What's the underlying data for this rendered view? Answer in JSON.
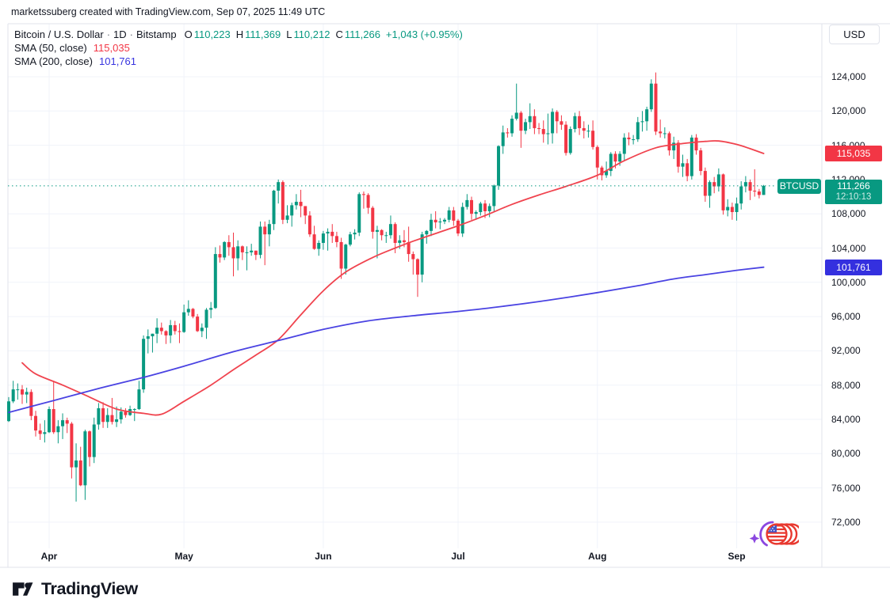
{
  "attribution": "marketssuberg created with TradingView.com, Sep 07, 2025 11:49 UTC",
  "legend": {
    "title": "Bitcoin / U.S. Dollar",
    "separator": "·",
    "interval": "1D",
    "exchange": "Bitstamp",
    "o_label": "O",
    "o_value": "110,223",
    "h_label": "H",
    "h_value": "111,369",
    "l_label": "L",
    "l_value": "110,212",
    "c_label": "C",
    "c_value": "111,266",
    "change": "+1,043 (+0.95%)",
    "sma50_label": "SMA (50, close)",
    "sma50_value": "115,035",
    "sma200_label": "SMA (200, close)",
    "sma200_value": "101,761"
  },
  "price_axis": {
    "currency_button": "USD",
    "sma50_badge": "115,035",
    "last_badge": "111,266",
    "countdown": "12:10:13",
    "sma200_badge": "101,761"
  },
  "symbol_badge": "BTCUSD",
  "footer": {
    "brand": "TradingView"
  },
  "colors": {
    "up": "#089981",
    "down": "#F23645",
    "sma50_line": "#F0434E",
    "sma200_line": "#4A43E2",
    "badge_red": "#F23645",
    "badge_teal": "#089981",
    "badge_blue": "#3430DF",
    "grid": "#F0F3FA",
    "border": "#E0E3EB",
    "text": "#131722",
    "background": "#FFFFFF"
  },
  "chart_data": {
    "type": "candlestick",
    "title": "Bitcoin / U.S. Dollar · 1D · Bitstamp",
    "symbol": "BTCUSD",
    "interval": "1D",
    "unit": "USD thousands",
    "start_date": "2025-03-23",
    "end_date": "2025-09-07",
    "ylim": [
      69000,
      130100
    ],
    "grid": true,
    "price_ticks": [
      124000,
      120000,
      116000,
      112000,
      108000,
      104000,
      100000,
      96000,
      92000,
      88000,
      84000,
      80000,
      76000,
      72000
    ],
    "month_labels": [
      "Apr",
      "May",
      "Jun",
      "Jul",
      "Aug",
      "Sep"
    ],
    "month_tick_days": [
      9,
      39,
      70,
      100,
      131,
      162
    ],
    "last_price": 111.266,
    "last_ohlc": {
      "open": 110.223,
      "high": 111.369,
      "low": 110.212,
      "close": 111.266
    },
    "candles": [
      [
        83.8,
        86.6,
        83.7,
        86.1
      ],
      [
        86.1,
        88.5,
        85.9,
        87.5
      ],
      [
        87.5,
        88.2,
        86.3,
        87.5
      ],
      [
        87.5,
        88.0,
        85.8,
        86.9
      ],
      [
        86.9,
        87.7,
        85.9,
        87.2
      ],
      [
        87.2,
        87.5,
        83.9,
        84.4
      ],
      [
        84.4,
        85.0,
        82.0,
        82.7
      ],
      [
        82.7,
        83.5,
        81.6,
        82.3
      ],
      [
        82.3,
        83.9,
        81.3,
        82.5
      ],
      [
        82.5,
        85.5,
        82.4,
        85.2
      ],
      [
        85.2,
        88.5,
        82.3,
        82.5
      ],
      [
        82.5,
        83.9,
        81.2,
        83.2
      ],
      [
        83.2,
        84.7,
        81.7,
        83.9
      ],
      [
        83.9,
        84.2,
        82.4,
        83.5
      ],
      [
        83.5,
        83.7,
        77.1,
        78.4
      ],
      [
        78.4,
        81.2,
        74.4,
        79.2
      ],
      [
        79.2,
        80.8,
        76.2,
        76.3
      ],
      [
        76.3,
        82.8,
        74.6,
        82.6
      ],
      [
        82.6,
        82.7,
        78.5,
        79.6
      ],
      [
        79.6,
        84.2,
        78.9,
        83.4
      ],
      [
        83.4,
        85.9,
        82.8,
        85.3
      ],
      [
        85.3,
        86.0,
        83.0,
        83.7
      ],
      [
        83.7,
        85.3,
        83.0,
        84.5
      ],
      [
        84.5,
        86.5,
        83.4,
        83.7
      ],
      [
        83.7,
        85.5,
        83.1,
        84.0
      ],
      [
        84.0,
        85.4,
        83.5,
        84.9
      ],
      [
        84.9,
        85.3,
        84.2,
        84.5
      ],
      [
        84.5,
        85.6,
        84.4,
        85.2
      ],
      [
        85.2,
        85.3,
        83.8,
        85.2
      ],
      [
        85.2,
        88.5,
        85.1,
        87.5
      ],
      [
        87.5,
        93.8,
        87.1,
        93.4
      ],
      [
        93.4,
        94.5,
        91.7,
        93.7
      ],
      [
        93.7,
        94.0,
        91.8,
        94.0
      ],
      [
        94.0,
        95.8,
        92.9,
        94.7
      ],
      [
        94.7,
        95.3,
        93.9,
        94.3
      ],
      [
        94.3,
        94.4,
        92.8,
        93.8
      ],
      [
        93.8,
        95.6,
        92.9,
        95.0
      ],
      [
        95.0,
        95.5,
        93.9,
        94.3
      ],
      [
        94.3,
        95.2,
        92.9,
        94.2
      ],
      [
        94.2,
        97.4,
        94.1,
        96.5
      ],
      [
        96.5,
        97.9,
        96.1,
        96.9
      ],
      [
        96.9,
        97.0,
        95.8,
        96.0
      ],
      [
        96.0,
        96.3,
        94.2,
        94.3
      ],
      [
        94.3,
        95.2,
        93.6,
        94.7
      ],
      [
        94.7,
        97.0,
        93.4,
        96.8
      ],
      [
        96.8,
        97.7,
        95.8,
        97.0
      ],
      [
        97.0,
        104.1,
        96.9,
        103.3
      ],
      [
        103.3,
        104.3,
        102.3,
        102.9
      ],
      [
        102.9,
        104.8,
        102.6,
        104.7
      ],
      [
        104.7,
        105.5,
        103.1,
        104.1
      ],
      [
        104.1,
        105.8,
        100.7,
        102.8
      ],
      [
        102.8,
        104.9,
        101.4,
        104.2
      ],
      [
        104.2,
        104.3,
        102.6,
        103.5
      ],
      [
        103.5,
        104.2,
        101.4,
        103.5
      ],
      [
        103.5,
        104.5,
        103.1,
        103.7
      ],
      [
        103.7,
        103.7,
        102.6,
        103.2
      ],
      [
        103.2,
        107.1,
        102.8,
        106.5
      ],
      [
        106.5,
        107.1,
        102.0,
        105.6
      ],
      [
        105.6,
        107.3,
        104.2,
        106.8
      ],
      [
        106.8,
        110.8,
        106.1,
        110.7
      ],
      [
        110.7,
        112.0,
        109.2,
        111.7
      ],
      [
        111.7,
        111.9,
        106.8,
        107.3
      ],
      [
        107.3,
        109.0,
        106.9,
        107.8
      ],
      [
        107.8,
        109.3,
        106.5,
        109.0
      ],
      [
        109.0,
        110.3,
        108.5,
        109.4
      ],
      [
        109.4,
        110.8,
        107.6,
        108.9
      ],
      [
        108.9,
        108.9,
        106.8,
        107.8
      ],
      [
        107.8,
        108.3,
        105.3,
        105.6
      ],
      [
        105.6,
        106.6,
        103.8,
        103.9
      ],
      [
        103.9,
        104.9,
        103.1,
        104.6
      ],
      [
        104.6,
        106.0,
        103.8,
        105.7
      ],
      [
        105.7,
        106.3,
        103.7,
        105.9
      ],
      [
        105.9,
        106.8,
        104.6,
        105.4
      ],
      [
        105.4,
        105.9,
        104.1,
        104.7
      ],
      [
        104.7,
        105.2,
        100.4,
        101.6
      ],
      [
        101.6,
        104.5,
        100.9,
        104.4
      ],
      [
        104.4,
        105.9,
        104.2,
        105.6
      ],
      [
        105.6,
        106.2,
        105.0,
        105.8
      ],
      [
        105.8,
        110.5,
        105.4,
        110.3
      ],
      [
        110.3,
        110.6,
        108.6,
        110.2
      ],
      [
        110.2,
        110.4,
        108.0,
        108.7
      ],
      [
        108.7,
        108.9,
        105.1,
        105.9
      ],
      [
        105.9,
        106.6,
        102.8,
        106.1
      ],
      [
        106.1,
        106.2,
        104.9,
        105.5
      ],
      [
        105.5,
        105.9,
        104.6,
        105.5
      ],
      [
        105.5,
        107.8,
        105.1,
        106.8
      ],
      [
        106.8,
        107.0,
        103.4,
        104.6
      ],
      [
        104.6,
        105.5,
        103.9,
        104.9
      ],
      [
        104.9,
        106.1,
        104.1,
        104.7
      ],
      [
        104.7,
        106.5,
        102.4,
        103.3
      ],
      [
        103.3,
        103.6,
        100.9,
        102.7
      ],
      [
        102.7,
        102.8,
        98.3,
        100.9
      ],
      [
        100.9,
        105.9,
        100.0,
        105.6
      ],
      [
        105.6,
        106.1,
        104.5,
        106.0
      ],
      [
        106.0,
        108.0,
        105.4,
        107.3
      ],
      [
        107.3,
        108.3,
        106.3,
        107.0
      ],
      [
        107.0,
        107.5,
        106.2,
        107.1
      ],
      [
        107.1,
        107.5,
        106.8,
        107.3
      ],
      [
        107.3,
        108.8,
        107.0,
        108.4
      ],
      [
        108.4,
        108.8,
        106.6,
        107.2
      ],
      [
        107.2,
        107.4,
        105.4,
        105.7
      ],
      [
        105.7,
        109.3,
        105.3,
        108.8
      ],
      [
        108.8,
        110.3,
        108.5,
        109.6
      ],
      [
        109.6,
        110.0,
        107.3,
        108.0
      ],
      [
        108.0,
        108.4,
        107.3,
        108.2
      ],
      [
        108.2,
        109.4,
        107.8,
        109.2
      ],
      [
        109.2,
        109.6,
        107.5,
        108.3
      ],
      [
        108.3,
        109.2,
        107.6,
        108.9
      ],
      [
        108.9,
        111.4,
        108.3,
        111.3
      ],
      [
        111.3,
        116.0,
        110.8,
        115.9
      ],
      [
        115.9,
        118.3,
        115.0,
        117.5
      ],
      [
        117.5,
        118.0,
        116.9,
        117.4
      ],
      [
        117.4,
        119.5,
        117.0,
        119.1
      ],
      [
        119.1,
        123.2,
        118.9,
        119.8
      ],
      [
        119.8,
        120.0,
        115.7,
        117.7
      ],
      [
        117.7,
        119.1,
        117.3,
        118.7
      ],
      [
        118.7,
        120.9,
        117.9,
        119.4
      ],
      [
        119.4,
        120.2,
        117.3,
        118.0
      ],
      [
        118.0,
        118.6,
        117.3,
        117.9
      ],
      [
        117.9,
        118.9,
        116.3,
        117.3
      ],
      [
        117.3,
        119.7,
        116.1,
        117.4
      ],
      [
        117.4,
        120.3,
        116.2,
        119.9
      ],
      [
        119.9,
        120.1,
        117.4,
        118.8
      ],
      [
        118.8,
        119.5,
        117.8,
        118.4
      ],
      [
        118.4,
        118.8,
        114.8,
        115.1
      ],
      [
        115.1,
        118.2,
        114.9,
        117.9
      ],
      [
        117.9,
        119.8,
        117.5,
        119.4
      ],
      [
        119.4,
        120.0,
        117.2,
        118.0
      ],
      [
        118.0,
        118.8,
        116.8,
        117.7
      ],
      [
        117.7,
        118.4,
        116.9,
        117.7
      ],
      [
        117.7,
        118.9,
        115.5,
        115.8
      ],
      [
        115.8,
        116.0,
        112.0,
        113.4
      ],
      [
        113.4,
        113.6,
        111.9,
        112.5
      ],
      [
        112.5,
        114.1,
        112.2,
        113.0
      ],
      [
        113.0,
        115.2,
        112.4,
        115.0
      ],
      [
        115.0,
        115.3,
        113.3,
        114.1
      ],
      [
        114.1,
        115.3,
        113.6,
        115.0
      ],
      [
        115.0,
        117.4,
        114.2,
        116.9
      ],
      [
        116.9,
        117.5,
        116.0,
        116.7
      ],
      [
        116.7,
        117.2,
        116.1,
        116.7
      ],
      [
        116.7,
        119.3,
        116.4,
        118.7
      ],
      [
        118.7,
        120.0,
        117.6,
        118.8
      ],
      [
        118.8,
        120.5,
        117.7,
        120.2
      ],
      [
        120.2,
        123.7,
        119.9,
        123.2
      ],
      [
        123.2,
        124.5,
        117.2,
        117.6
      ],
      [
        117.6,
        119.0,
        116.9,
        117.4
      ],
      [
        117.4,
        118.1,
        116.8,
        117.4
      ],
      [
        117.4,
        117.6,
        114.8,
        115.4
      ],
      [
        115.4,
        117.0,
        114.4,
        116.3
      ],
      [
        116.3,
        116.6,
        112.8,
        113.5
      ],
      [
        113.5,
        114.9,
        112.3,
        113.9
      ],
      [
        113.9,
        114.4,
        111.8,
        112.4
      ],
      [
        112.4,
        117.2,
        112.0,
        116.9
      ],
      [
        116.9,
        117.3,
        114.9,
        115.4
      ],
      [
        115.4,
        115.7,
        112.5,
        113.0
      ],
      [
        113.0,
        113.4,
        109.4,
        110.1
      ],
      [
        110.1,
        111.9,
        108.7,
        111.7
      ],
      [
        111.7,
        112.3,
        110.4,
        111.2
      ],
      [
        111.2,
        113.3,
        110.6,
        112.6
      ],
      [
        112.6,
        112.7,
        107.9,
        108.4
      ],
      [
        108.4,
        109.7,
        107.7,
        108.8
      ],
      [
        108.8,
        109.3,
        107.3,
        108.2
      ],
      [
        108.2,
        109.9,
        107.2,
        109.2
      ],
      [
        109.2,
        111.8,
        108.5,
        111.2
      ],
      [
        111.2,
        112.4,
        110.5,
        111.7
      ],
      [
        111.7,
        112.0,
        109.6,
        110.7
      ],
      [
        110.7,
        113.2,
        110.0,
        110.6
      ],
      [
        110.6,
        110.9,
        109.8,
        110.2
      ],
      [
        110.2,
        111.369,
        110.212,
        111.266
      ]
    ],
    "series": [
      {
        "name": "SMA (50, close)",
        "period": 50,
        "last_value": 115.035,
        "points": [
          [
            3,
            90.6
          ],
          [
            6,
            89.3
          ],
          [
            12,
            88.0
          ],
          [
            18,
            86.6
          ],
          [
            24,
            85.2
          ],
          [
            30,
            84.7
          ],
          [
            34,
            84.6
          ],
          [
            39,
            86.1
          ],
          [
            45,
            88.0
          ],
          [
            50,
            89.8
          ],
          [
            55,
            91.5
          ],
          [
            60,
            93.3
          ],
          [
            65,
            96.2
          ],
          [
            70,
            99.0
          ],
          [
            75,
            101.2
          ],
          [
            81,
            102.9
          ],
          [
            86,
            104.0
          ],
          [
            90,
            104.8
          ],
          [
            95,
            105.7
          ],
          [
            100,
            106.6
          ],
          [
            106,
            107.8
          ],
          [
            112,
            109.1
          ],
          [
            118,
            110.2
          ],
          [
            124,
            111.2
          ],
          [
            131,
            112.5
          ],
          [
            137,
            114.2
          ],
          [
            144,
            115.7
          ],
          [
            150,
            116.2
          ],
          [
            155,
            116.45
          ],
          [
            158,
            116.5
          ],
          [
            162,
            116.1
          ],
          [
            165,
            115.6
          ],
          [
            168,
            115.035
          ]
        ]
      },
      {
        "name": "SMA (200, close)",
        "period": 200,
        "last_value": 101.761,
        "points": [
          [
            0,
            84.8
          ],
          [
            10,
            86.2
          ],
          [
            20,
            87.6
          ],
          [
            30,
            88.9
          ],
          [
            39,
            90.2
          ],
          [
            50,
            91.9
          ],
          [
            60,
            93.2
          ],
          [
            70,
            94.5
          ],
          [
            80,
            95.5
          ],
          [
            90,
            96.1
          ],
          [
            100,
            96.6
          ],
          [
            110,
            97.2
          ],
          [
            120,
            97.9
          ],
          [
            131,
            98.8
          ],
          [
            140,
            99.6
          ],
          [
            148,
            100.4
          ],
          [
            155,
            100.9
          ],
          [
            162,
            101.4
          ],
          [
            168,
            101.761
          ]
        ]
      }
    ]
  }
}
